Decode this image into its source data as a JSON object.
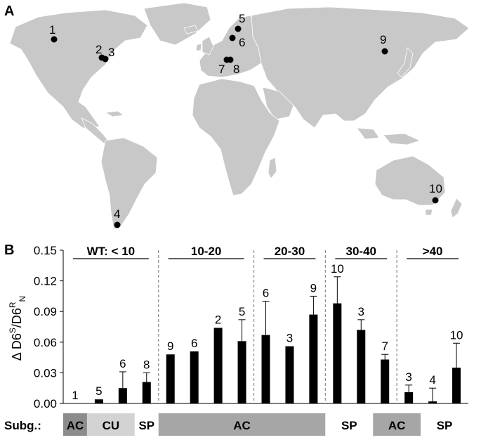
{
  "panel_a": {
    "label": "A",
    "sites": [
      {
        "label": "1"
      },
      {
        "label": "2"
      },
      {
        "label": "3"
      },
      {
        "label": "4"
      },
      {
        "label": "5"
      },
      {
        "label": "6"
      },
      {
        "label": "7"
      },
      {
        "label": "8"
      },
      {
        "label": "9"
      },
      {
        "label": "10"
      }
    ]
  },
  "chart_data": {
    "panel_label": "B",
    "type": "bar",
    "ylabel": "Δ D6S/D6RN",
    "ylim": [
      0,
      0.15
    ],
    "yticks": [
      "0.00",
      "0.03",
      "0.06",
      "0.09",
      "0.12",
      "0.15"
    ],
    "bars": [
      {
        "site": "1",
        "value": 0.0,
        "err": 0.0
      },
      {
        "site": "5",
        "value": 0.004,
        "err": 0.0
      },
      {
        "site": "6",
        "value": 0.015,
        "err": 0.016
      },
      {
        "site": "8",
        "value": 0.021,
        "err": 0.009
      },
      {
        "site": "9",
        "value": 0.048,
        "err": 0.0
      },
      {
        "site": "6",
        "value": 0.051,
        "err": 0.0
      },
      {
        "site": "2",
        "value": 0.074,
        "err": 0.0
      },
      {
        "site": "5",
        "value": 0.061,
        "err": 0.021
      },
      {
        "site": "6",
        "value": 0.067,
        "err": 0.033
      },
      {
        "site": "3",
        "value": 0.056,
        "err": 0.0
      },
      {
        "site": "9",
        "value": 0.087,
        "err": 0.018
      },
      {
        "site": "10",
        "value": 0.098,
        "err": 0.026
      },
      {
        "site": "3",
        "value": 0.072,
        "err": 0.01
      },
      {
        "site": "7",
        "value": 0.043,
        "err": 0.005
      },
      {
        "site": "3",
        "value": 0.011,
        "err": 0.007
      },
      {
        "site": "4",
        "value": 0.002,
        "err": 0.013
      },
      {
        "site": "10",
        "value": 0.035,
        "err": 0.024
      }
    ],
    "groups": [
      {
        "label": "WT: < 10",
        "start": 0,
        "end": 3
      },
      {
        "label": "10-20",
        "start": 4,
        "end": 7
      },
      {
        "label": "20-30",
        "start": 8,
        "end": 10
      },
      {
        "label": "30-40",
        "start": 11,
        "end": 13
      },
      {
        "label": ">40",
        "start": 14,
        "end": 16
      }
    ],
    "subgroup_title": "Subg.:",
    "subgroups": [
      {
        "label": "AC",
        "color": "#8c8c8c",
        "start": 0,
        "end": 0
      },
      {
        "label": "CU",
        "color": "#d3d3d3",
        "start": 1,
        "end": 2
      },
      {
        "label": "SP",
        "color": "#ffffff",
        "start": 3,
        "end": 3
      },
      {
        "label": "AC",
        "color": "#a6a6a6",
        "start": 4,
        "end": 10
      },
      {
        "label": "SP",
        "color": "#ffffff",
        "start": 11,
        "end": 12
      },
      {
        "label": "AC",
        "color": "#a6a6a6",
        "start": 13,
        "end": 14
      },
      {
        "label": "SP",
        "color": "#ffffff",
        "start": 15,
        "end": 16
      }
    ]
  }
}
